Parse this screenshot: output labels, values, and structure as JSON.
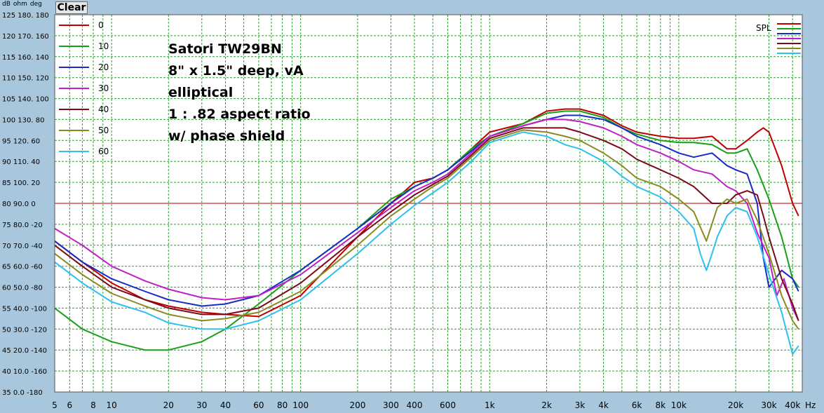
{
  "header": {
    "units": [
      "dB",
      "ohm",
      "deg"
    ],
    "clear_label": "Clear"
  },
  "colors": {
    "background": "#a9c7dc",
    "plot_bg": "#ffffff",
    "grid": "#2aa02a",
    "reference_line": "#b00000"
  },
  "chart_data": {
    "type": "line",
    "x_scale": "log",
    "xlim": [
      5,
      45000
    ],
    "ylim": [
      35,
      125
    ],
    "x_ticks": [
      {
        "value": 5,
        "label": "5"
      },
      {
        "value": 6,
        "label": "6"
      },
      {
        "value": 8,
        "label": "8"
      },
      {
        "value": 10,
        "label": "10"
      },
      {
        "value": 20,
        "label": "20"
      },
      {
        "value": 30,
        "label": "30"
      },
      {
        "value": 40,
        "label": "40"
      },
      {
        "value": 60,
        "label": "60"
      },
      {
        "value": 80,
        "label": "80"
      },
      {
        "value": 100,
        "label": "100"
      },
      {
        "value": 200,
        "label": "200"
      },
      {
        "value": 300,
        "label": "300"
      },
      {
        "value": 400,
        "label": "400"
      },
      {
        "value": 600,
        "label": "600"
      },
      {
        "value": 1000,
        "label": "1k"
      },
      {
        "value": 2000,
        "label": "2k"
      },
      {
        "value": 3000,
        "label": "3k"
      },
      {
        "value": 4000,
        "label": "4k"
      },
      {
        "value": 6000,
        "label": "6k"
      },
      {
        "value": 8000,
        "label": "8k"
      },
      {
        "value": 10000,
        "label": "10k"
      },
      {
        "value": 20000,
        "label": "20k"
      },
      {
        "value": 30000,
        "label": "30k"
      },
      {
        "value": 40000,
        "label": "40k"
      }
    ],
    "x_unit": "Hz",
    "y_ticks": [
      {
        "value": 125,
        "label": "125 180. 180"
      },
      {
        "value": 120,
        "label": "120 170. 160"
      },
      {
        "value": 115,
        "label": "115 160. 140"
      },
      {
        "value": 110,
        "label": "110 150. 120"
      },
      {
        "value": 105,
        "label": "105 140. 100"
      },
      {
        "value": 100,
        "label": "100 130. 80"
      },
      {
        "value": 95,
        "label": "95  120. 60"
      },
      {
        "value": 90,
        "label": "90  110. 40"
      },
      {
        "value": 85,
        "label": "85  100. 20"
      },
      {
        "value": 80,
        "label": "80  90.0 0"
      },
      {
        "value": 75,
        "label": "75  80.0 -20"
      },
      {
        "value": 70,
        "label": "70  70.0 -40"
      },
      {
        "value": 65,
        "label": "65  60.0 -60"
      },
      {
        "value": 60,
        "label": "60  50.0 -80"
      },
      {
        "value": 55,
        "label": "55  40.0 -100"
      },
      {
        "value": 50,
        "label": "50  30.0 -120"
      },
      {
        "value": 45,
        "label": "45  20.0 -140"
      },
      {
        "value": 40,
        "label": "40  10.0 -160"
      },
      {
        "value": 35,
        "label": "35  0.0 -180"
      }
    ],
    "reference_level": 80,
    "grid": true,
    "legend_placement": "top-left",
    "spl_legend_label": "SPL",
    "annotation_lines": [
      "Satori TW29BN",
      "8\" x 1.5\" deep, vA",
      "elliptical",
      "1 : .82 aspect ratio",
      "w/ phase shield"
    ],
    "series": [
      {
        "name": "0",
        "color": "#c00000",
        "x": [
          5,
          7,
          10,
          15,
          20,
          30,
          40,
          60,
          100,
          200,
          300,
          400,
          500,
          600,
          800,
          1000,
          1500,
          2000,
          2500,
          3000,
          4000,
          5000,
          6000,
          8000,
          10000,
          12000,
          15000,
          18000,
          20000,
          23000,
          26000,
          28000,
          30000,
          35000,
          40000,
          43000
        ],
        "y": [
          71,
          66,
          61,
          57,
          55.5,
          54,
          53.5,
          53,
          58,
          72,
          80,
          85,
          86,
          88,
          93,
          97,
          99,
          102,
          102.5,
          102.5,
          101,
          98.5,
          97,
          96,
          95.5,
          95.5,
          96,
          93,
          93,
          95,
          97,
          98,
          97,
          89,
          80,
          77
        ]
      },
      {
        "name": "10",
        "color": "#18a018",
        "x": [
          5,
          7,
          10,
          15,
          20,
          30,
          40,
          60,
          100,
          200,
          300,
          400,
          500,
          600,
          800,
          1000,
          1500,
          2000,
          2500,
          3000,
          4000,
          5000,
          6000,
          8000,
          10000,
          12000,
          15000,
          18000,
          20000,
          23000,
          26000,
          30000,
          35000,
          40000,
          43000
        ],
        "y": [
          55,
          50,
          47,
          45,
          45,
          47,
          50,
          56,
          64,
          74,
          81,
          84,
          86,
          88,
          93,
          96,
          99,
          101.5,
          102,
          102,
          100.5,
          98,
          96.5,
          95,
          94.5,
          94.5,
          94,
          92,
          92,
          93,
          88,
          81,
          72,
          62,
          60
        ]
      },
      {
        "name": "20",
        "color": "#1a2ac8",
        "x": [
          5,
          7,
          10,
          15,
          20,
          30,
          40,
          60,
          100,
          200,
          300,
          400,
          500,
          600,
          800,
          1000,
          1500,
          2000,
          2500,
          3000,
          4000,
          5000,
          6000,
          8000,
          10000,
          12000,
          15000,
          18000,
          20000,
          23000,
          26000,
          28000,
          30000,
          35000,
          40000,
          43000
        ],
        "y": [
          71,
          66,
          62,
          59,
          57,
          55.5,
          56,
          58,
          64,
          74,
          80,
          84,
          86,
          88,
          92.5,
          96,
          98.5,
          100,
          101,
          101,
          100,
          98,
          96,
          94,
          92,
          91,
          92,
          89,
          88,
          87,
          80,
          67,
          60,
          64,
          62,
          59
        ]
      },
      {
        "name": "30",
        "color": "#c21ec8",
        "x": [
          5,
          7,
          10,
          15,
          20,
          30,
          40,
          60,
          100,
          200,
          300,
          400,
          500,
          600,
          800,
          1000,
          1500,
          2000,
          2500,
          3000,
          4000,
          5000,
          6000,
          8000,
          10000,
          12000,
          15000,
          18000,
          20000,
          23000,
          26000,
          30000,
          33000,
          36000,
          40000,
          43000
        ],
        "y": [
          74,
          70,
          65,
          61.5,
          59.5,
          57.5,
          57,
          58,
          63,
          73,
          79,
          83,
          85,
          87,
          92,
          96,
          98.5,
          100,
          100,
          99.5,
          98,
          96,
          94,
          92,
          90,
          88,
          87,
          84,
          83,
          80,
          73,
          67,
          58,
          62,
          55,
          52
        ]
      },
      {
        "name": "40",
        "color": "#7a0a1a",
        "x": [
          5,
          7,
          10,
          15,
          20,
          30,
          40,
          60,
          100,
          200,
          300,
          400,
          500,
          600,
          800,
          1000,
          1500,
          2000,
          2500,
          3000,
          4000,
          5000,
          6000,
          8000,
          10000,
          12000,
          15000,
          18000,
          20000,
          23000,
          26000,
          28000,
          30000,
          35000,
          40000,
          43000
        ],
        "y": [
          70,
          65,
          60,
          57,
          55,
          53.5,
          53.5,
          55,
          61,
          72,
          78,
          82,
          84.5,
          86.5,
          91.5,
          95.5,
          98,
          98,
          98,
          97,
          95,
          93,
          90.5,
          88,
          86,
          84,
          80,
          80,
          82,
          83,
          82,
          77,
          72,
          62,
          56,
          52
        ]
      },
      {
        "name": "50",
        "color": "#8a8a22",
        "x": [
          5,
          7,
          10,
          15,
          20,
          30,
          40,
          60,
          100,
          200,
          300,
          400,
          500,
          600,
          800,
          1000,
          1500,
          2000,
          2500,
          3000,
          4000,
          5000,
          6000,
          8000,
          10000,
          12000,
          14000,
          16000,
          18000,
          20000,
          23000,
          26000,
          30000,
          35000,
          40000,
          43000
        ],
        "y": [
          68,
          63,
          58.5,
          55.5,
          53.5,
          52,
          52.5,
          54,
          59,
          70,
          77,
          81,
          84,
          86,
          91,
          95,
          97.5,
          97,
          96,
          95,
          92,
          89,
          86,
          84,
          81,
          78,
          71,
          79,
          81,
          80,
          81,
          76,
          68,
          58,
          52,
          50
        ]
      },
      {
        "name": "60",
        "color": "#2ec0ee",
        "x": [
          5,
          7,
          10,
          15,
          20,
          30,
          40,
          60,
          100,
          200,
          300,
          400,
          500,
          600,
          800,
          1000,
          1500,
          2000,
          2500,
          3000,
          4000,
          5000,
          6000,
          8000,
          10000,
          12000,
          13000,
          14000,
          15000,
          16000,
          18000,
          20000,
          23000,
          26000,
          30000,
          35000,
          40000,
          43000
        ],
        "y": [
          66,
          61,
          56.5,
          54,
          51.5,
          50,
          50,
          52,
          57,
          68,
          75,
          79.5,
          82.5,
          85,
          90,
          94.5,
          97,
          96,
          94,
          93,
          90,
          86.5,
          84,
          81.5,
          78,
          74,
          68,
          64,
          68,
          72,
          77,
          79,
          78,
          72,
          63,
          54,
          44,
          46
        ]
      }
    ]
  }
}
